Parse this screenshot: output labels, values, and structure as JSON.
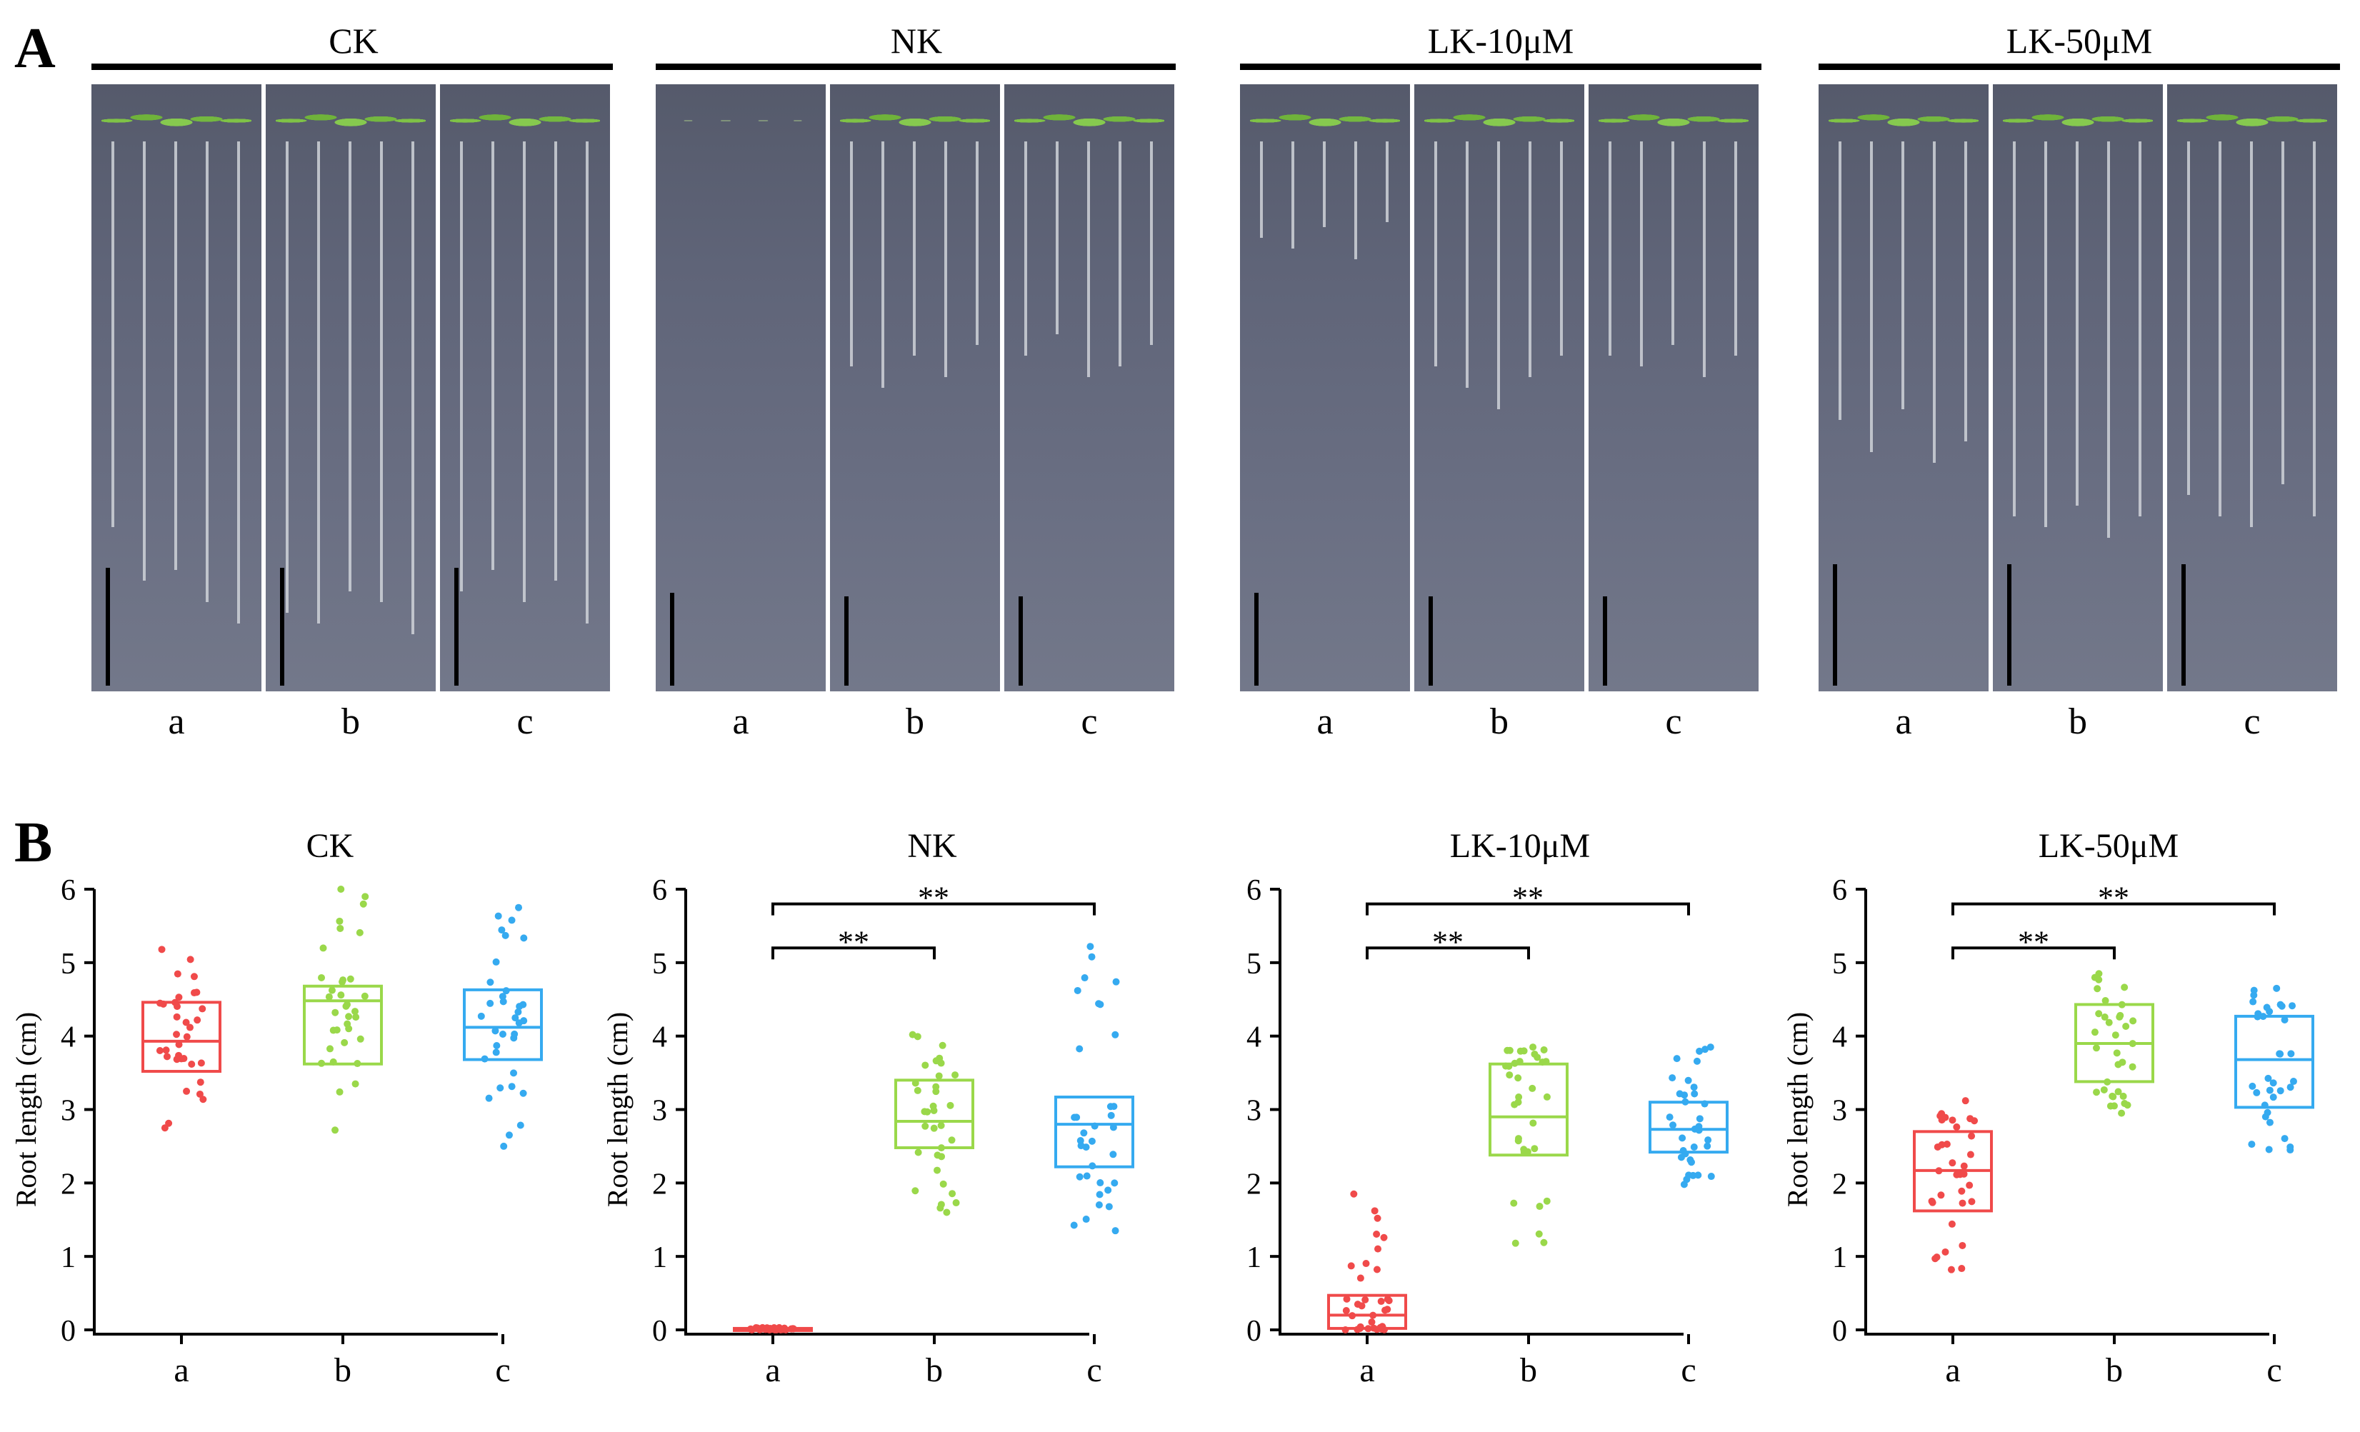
{
  "figure": {
    "panel_a_letter": "A",
    "panel_b_letter": "B"
  },
  "panel_a": {
    "groups": [
      {
        "title": "CK",
        "panels": [
          "a",
          "b",
          "c"
        ]
      },
      {
        "title": "NK",
        "panels": [
          "a",
          "b",
          "c"
        ]
      },
      {
        "title": "LK-10μM",
        "panels": [
          "a",
          "b",
          "c"
        ]
      },
      {
        "title": "LK-50μM",
        "panels": [
          "a",
          "b",
          "c"
        ]
      }
    ]
  },
  "colors": {
    "a": "#f04a4a",
    "b": "#9ad84a",
    "c": "#35aaf0"
  },
  "chart_data": [
    {
      "type": "box",
      "title": "CK",
      "xlabel": "",
      "ylabel": "Root length (cm)",
      "ylim": [
        0,
        6
      ],
      "yticks": [
        0,
        1,
        2,
        3,
        4,
        5,
        6
      ],
      "categories": [
        "a",
        "b",
        "c"
      ],
      "boxes": [
        {
          "name": "a",
          "q1": 3.52,
          "median": 3.93,
          "q3": 4.46,
          "min": 2.75,
          "max": 5.18
        },
        {
          "name": "b",
          "q1": 3.62,
          "median": 4.48,
          "q3": 4.68,
          "min": 2.72,
          "max": 6.0
        },
        {
          "name": "c",
          "q1": 3.68,
          "median": 4.12,
          "q3": 4.63,
          "min": 2.5,
          "max": 5.75
        }
      ],
      "significance": []
    },
    {
      "type": "box",
      "title": "NK",
      "xlabel": "",
      "ylabel": "Root length (cm)",
      "ylim": [
        0,
        6
      ],
      "yticks": [
        0,
        1,
        2,
        3,
        4,
        5,
        6
      ],
      "categories": [
        "a",
        "b",
        "c"
      ],
      "boxes": [
        {
          "name": "a",
          "q1": 0.0,
          "median": 0.0,
          "q3": 0.02,
          "min": 0.0,
          "max": 0.03
        },
        {
          "name": "b",
          "q1": 2.48,
          "median": 2.84,
          "q3": 3.4,
          "min": 1.6,
          "max": 4.02
        },
        {
          "name": "c",
          "q1": 2.22,
          "median": 2.8,
          "q3": 3.17,
          "min": 1.35,
          "max": 5.22
        }
      ],
      "significance": [
        {
          "from": "a",
          "to": "b",
          "label": "**",
          "y": 5.2
        },
        {
          "from": "a",
          "to": "c",
          "label": "**",
          "y": 5.8
        }
      ]
    },
    {
      "type": "box",
      "title": "LK-10μM",
      "xlabel": "",
      "ylabel": "",
      "ylim": [
        0,
        6
      ],
      "yticks": [
        0,
        1,
        2,
        3,
        4,
        5,
        6
      ],
      "categories": [
        "a",
        "b",
        "c"
      ],
      "boxes": [
        {
          "name": "a",
          "q1": 0.02,
          "median": 0.2,
          "q3": 0.47,
          "min": 0.0,
          "max": 1.85
        },
        {
          "name": "b",
          "q1": 2.38,
          "median": 2.9,
          "q3": 3.62,
          "min": 1.18,
          "max": 3.85
        },
        {
          "name": "c",
          "q1": 2.42,
          "median": 2.73,
          "q3": 3.1,
          "min": 1.98,
          "max": 3.85
        }
      ],
      "significance": [
        {
          "from": "a",
          "to": "b",
          "label": "**",
          "y": 5.2
        },
        {
          "from": "a",
          "to": "c",
          "label": "**",
          "y": 5.8
        }
      ]
    },
    {
      "type": "box",
      "title": "LK-50μM",
      "xlabel": "",
      "ylabel": "Root length (cm)",
      "ylim": [
        0,
        6
      ],
      "yticks": [
        0,
        1,
        2,
        3,
        4,
        5,
        6
      ],
      "categories": [
        "a",
        "b",
        "c"
      ],
      "boxes": [
        {
          "name": "a",
          "q1": 1.62,
          "median": 2.17,
          "q3": 2.7,
          "min": 0.82,
          "max": 3.12
        },
        {
          "name": "b",
          "q1": 3.38,
          "median": 3.9,
          "q3": 4.43,
          "min": 2.95,
          "max": 4.85
        },
        {
          "name": "c",
          "q1": 3.03,
          "median": 3.68,
          "q3": 4.27,
          "min": 2.45,
          "max": 4.65
        }
      ],
      "significance": [
        {
          "from": "a",
          "to": "b",
          "label": "**",
          "y": 5.2
        },
        {
          "from": "a",
          "to": "c",
          "label": "**",
          "y": 5.8
        }
      ]
    }
  ]
}
